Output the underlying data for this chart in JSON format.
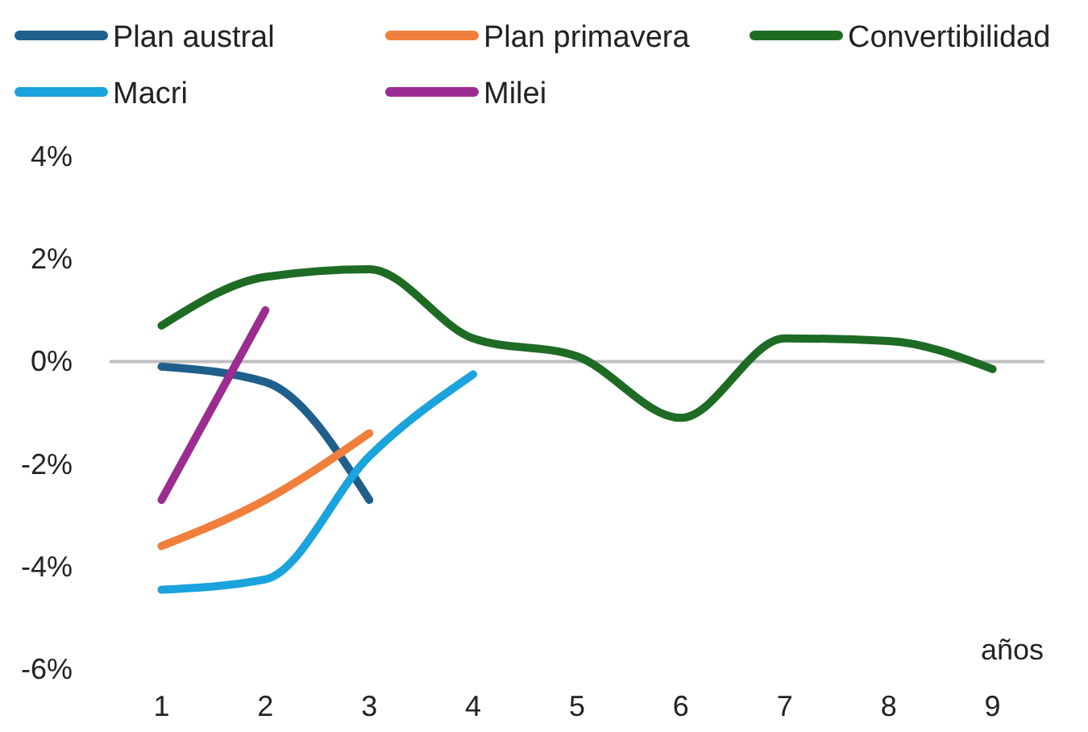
{
  "chart_data": {
    "type": "line",
    "xlabel": "años",
    "x": [
      1,
      2,
      3,
      4,
      5,
      6,
      7,
      8,
      9
    ],
    "xlim": [
      0.5,
      9.5
    ],
    "xticks": [
      1,
      2,
      3,
      4,
      5,
      6,
      7,
      8,
      9
    ],
    "ylim": [
      -6,
      4
    ],
    "yticks": [
      {
        "value": -6,
        "label": "-6%"
      },
      {
        "value": -4,
        "label": "-4%"
      },
      {
        "value": -2,
        "label": "-2%"
      },
      {
        "value": 0,
        "label": "0%"
      },
      {
        "value": 2,
        "label": "2%"
      },
      {
        "value": 4,
        "label": "4%"
      }
    ],
    "grid": false,
    "legend": "top",
    "marker": "none",
    "line_style": "solid",
    "ref_lines": [
      {
        "axis": "y",
        "value": 0,
        "color": "#bfbfbf"
      }
    ],
    "series": [
      {
        "name": "Plan austral",
        "color": "#1f5f8b",
        "values": [
          -0.1,
          -0.4,
          -2.7,
          null,
          null,
          null,
          null,
          null,
          null
        ]
      },
      {
        "name": "Plan primavera",
        "color": "#f07f3c",
        "values": [
          -3.6,
          -2.7,
          -1.4,
          null,
          null,
          null,
          null,
          null,
          null
        ]
      },
      {
        "name": "Convertibilidad",
        "color": "#1e6b24",
        "values": [
          0.7,
          1.65,
          1.8,
          0.45,
          0.1,
          -1.1,
          0.45,
          0.4,
          -0.15
        ]
      },
      {
        "name": "Macri",
        "color": "#1aa3dc",
        "values": [
          -4.45,
          -4.25,
          -1.85,
          -0.25,
          null,
          null,
          null,
          null,
          null
        ]
      },
      {
        "name": "Milei",
        "color": "#9b2d91",
        "values": [
          -2.7,
          1.0,
          null,
          null,
          null,
          null,
          null,
          null,
          null
        ]
      }
    ]
  }
}
